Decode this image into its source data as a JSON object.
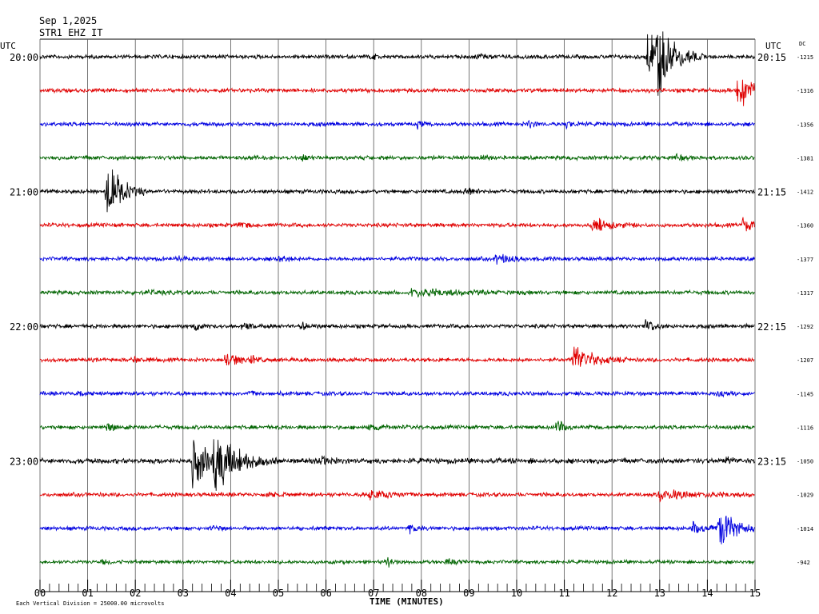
{
  "header": {
    "date": "Sep 1,2025",
    "station": "STR1 EHZ IT"
  },
  "labels": {
    "utc_left": "UTC",
    "utc_right": "UTC",
    "dc": "DC",
    "xlabel": "TIME (MINUTES)",
    "scale_note": "Each Vertical Division = 25000.00 microvolts"
  },
  "chart_data": {
    "type": "line",
    "title": "",
    "xlabel": "TIME (MINUTES)",
    "ylabel": "",
    "xlim": [
      0,
      15
    ],
    "x_ticks": [
      "00",
      "01",
      "02",
      "03",
      "04",
      "05",
      "06",
      "07",
      "08",
      "09",
      "10",
      "11",
      "12",
      "13",
      "14",
      "15"
    ],
    "minor_ticks_per_minute": 4,
    "grid": true,
    "colors": [
      "#000000",
      "#e00000",
      "#0000e0",
      "#006400"
    ],
    "row_labels_left": [
      {
        "row": 0,
        "text": "20:00"
      },
      {
        "row": 4,
        "text": "21:00"
      },
      {
        "row": 8,
        "text": "22:00"
      },
      {
        "row": 12,
        "text": "23:00"
      }
    ],
    "row_labels_right": [
      {
        "row": 0,
        "text": "20:15"
      },
      {
        "row": 4,
        "text": "21:15"
      },
      {
        "row": 8,
        "text": "22:15"
      },
      {
        "row": 12,
        "text": "23:15"
      }
    ],
    "dc_offsets": [
      "-1215",
      "-1316",
      "-1356",
      "-1381",
      "-1412",
      "-1360",
      "-1377",
      "-1317",
      "-1292",
      "-1207",
      "-1145",
      "-1116",
      "-1050",
      "-1029",
      "-1014",
      "-942"
    ],
    "series": [
      {
        "row": 0,
        "end_minute": 15.0,
        "noise": 2.0,
        "events": [
          {
            "t": 12.75,
            "amp": 36,
            "dur": 0.6
          },
          {
            "t": 12.95,
            "amp": 46,
            "dur": 0.5
          },
          {
            "t": 9.2,
            "amp": 5,
            "dur": 0.2
          },
          {
            "t": 6.95,
            "amp": 5,
            "dur": 0.2
          }
        ]
      },
      {
        "row": 1,
        "end_minute": 15.0,
        "noise": 2.0,
        "events": [
          {
            "t": 14.65,
            "amp": 46,
            "dur": 0.35
          }
        ]
      },
      {
        "row": 2,
        "end_minute": 15.0,
        "noise": 2.0,
        "events": [
          {
            "t": 10.25,
            "amp": 7,
            "dur": 0.2
          },
          {
            "t": 7.9,
            "amp": 5,
            "dur": 0.2
          },
          {
            "t": 11.05,
            "amp": 4,
            "dur": 0.2
          }
        ]
      },
      {
        "row": 3,
        "end_minute": 15.0,
        "noise": 2.0,
        "events": [
          {
            "t": 5.5,
            "amp": 4,
            "dur": 0.3
          },
          {
            "t": 9.25,
            "amp": 5,
            "dur": 0.2
          },
          {
            "t": 13.3,
            "amp": 4,
            "dur": 0.3
          }
        ]
      },
      {
        "row": 4,
        "end_minute": 15.0,
        "noise": 2.0,
        "events": [
          {
            "t": 1.4,
            "amp": 48,
            "dur": 0.45
          },
          {
            "t": 8.9,
            "amp": 8,
            "dur": 0.25
          }
        ]
      },
      {
        "row": 5,
        "end_minute": 15.0,
        "noise": 2.0,
        "events": [
          {
            "t": 11.6,
            "amp": 12,
            "dur": 0.5
          },
          {
            "t": 14.75,
            "amp": 14,
            "dur": 0.35
          },
          {
            "t": 4.2,
            "amp": 4,
            "dur": 0.2
          }
        ]
      },
      {
        "row": 6,
        "end_minute": 15.0,
        "noise": 2.0,
        "events": [
          {
            "t": 9.55,
            "amp": 7,
            "dur": 0.6
          },
          {
            "t": 2.95,
            "amp": 5,
            "dur": 0.2
          },
          {
            "t": 5.0,
            "amp": 4,
            "dur": 0.3
          }
        ]
      },
      {
        "row": 7,
        "end_minute": 15.0,
        "noise": 2.0,
        "events": [
          {
            "t": 7.8,
            "amp": 6,
            "dur": 1.4
          },
          {
            "t": 2.3,
            "amp": 4,
            "dur": 0.3
          }
        ]
      },
      {
        "row": 8,
        "end_minute": 15.0,
        "noise": 2.0,
        "events": [
          {
            "t": 12.7,
            "amp": 12,
            "dur": 0.3
          },
          {
            "t": 3.25,
            "amp": 6,
            "dur": 0.2
          },
          {
            "t": 4.25,
            "amp": 5,
            "dur": 0.3
          },
          {
            "t": 5.5,
            "amp": 5,
            "dur": 0.2
          }
        ]
      },
      {
        "row": 9,
        "end_minute": 15.0,
        "noise": 2.0,
        "events": [
          {
            "t": 11.2,
            "amp": 24,
            "dur": 0.6
          },
          {
            "t": 3.9,
            "amp": 12,
            "dur": 0.4
          },
          {
            "t": 4.45,
            "amp": 8,
            "dur": 0.2
          },
          {
            "t": 2.0,
            "amp": 4,
            "dur": 0.2
          }
        ]
      },
      {
        "row": 10,
        "end_minute": 15.0,
        "noise": 2.0,
        "events": [
          {
            "t": 0.8,
            "amp": 6,
            "dur": 0.2
          },
          {
            "t": 4.4,
            "amp": 4,
            "dur": 0.2
          },
          {
            "t": 14.2,
            "amp": 4,
            "dur": 0.2
          }
        ]
      },
      {
        "row": 11,
        "end_minute": 15.0,
        "noise": 2.0,
        "events": [
          {
            "t": 10.85,
            "amp": 12,
            "dur": 0.2
          },
          {
            "t": 1.4,
            "amp": 4,
            "dur": 0.5
          },
          {
            "t": 6.9,
            "amp": 5,
            "dur": 0.3
          }
        ]
      },
      {
        "row": 12,
        "end_minute": 15.0,
        "noise": 2.6,
        "events": [
          {
            "t": 3.2,
            "amp": 36,
            "dur": 0.8
          },
          {
            "t": 3.65,
            "amp": 38,
            "dur": 0.7
          },
          {
            "t": 5.9,
            "amp": 6,
            "dur": 0.4
          },
          {
            "t": 14.4,
            "amp": 6,
            "dur": 0.2
          }
        ]
      },
      {
        "row": 13,
        "end_minute": 15.0,
        "noise": 2.0,
        "events": [
          {
            "t": 6.9,
            "amp": 7,
            "dur": 0.7
          },
          {
            "t": 13.0,
            "amp": 8,
            "dur": 1.1
          },
          {
            "t": 4.75,
            "amp": 6,
            "dur": 0.2
          }
        ]
      },
      {
        "row": 14,
        "end_minute": 15.0,
        "noise": 2.0,
        "events": [
          {
            "t": 14.25,
            "amp": 32,
            "dur": 0.5
          },
          {
            "t": 13.7,
            "amp": 8,
            "dur": 0.5
          },
          {
            "t": 7.75,
            "amp": 5,
            "dur": 0.3
          },
          {
            "t": 3.6,
            "amp": 4,
            "dur": 0.2
          }
        ]
      },
      {
        "row": 15,
        "end_minute": 15.0,
        "noise": 1.8,
        "events": [
          {
            "t": 7.3,
            "amp": 6,
            "dur": 0.2
          },
          {
            "t": 8.55,
            "amp": 4,
            "dur": 0.2
          },
          {
            "t": 1.3,
            "amp": 4,
            "dur": 0.2
          }
        ]
      }
    ]
  }
}
